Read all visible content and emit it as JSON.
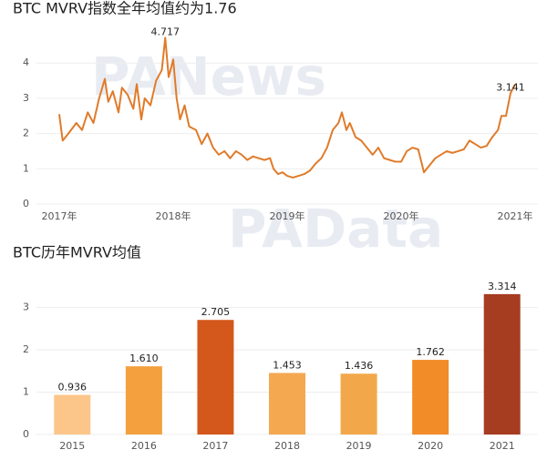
{
  "watermarks": [
    "PANews",
    "PAData"
  ],
  "chart_data": [
    {
      "type": "line",
      "title": "BTC MVRV指数全年均值约为1.76",
      "xlim": [
        2016.8,
        2021.2
      ],
      "xticks": [
        {
          "value": 2017,
          "label": "2017年"
        },
        {
          "value": 2018,
          "label": "2018年"
        },
        {
          "value": 2019,
          "label": "2019年"
        },
        {
          "value": 2020,
          "label": "2020年"
        },
        {
          "value": 2021,
          "label": "2021年"
        }
      ],
      "ylim": [
        0,
        5
      ],
      "yticks": [
        0,
        1,
        2,
        3,
        4
      ],
      "grid": true,
      "series": [
        {
          "name": "MVRV",
          "color": "#e07b2a",
          "x": [
            2017.0,
            2017.03,
            2017.08,
            2017.15,
            2017.2,
            2017.25,
            2017.3,
            2017.35,
            2017.4,
            2017.43,
            2017.47,
            2017.52,
            2017.55,
            2017.6,
            2017.65,
            2017.68,
            2017.72,
            2017.75,
            2017.8,
            2017.85,
            2017.9,
            2017.93,
            2017.96,
            2018.0,
            2018.03,
            2018.06,
            2018.1,
            2018.14,
            2018.2,
            2018.25,
            2018.3,
            2018.35,
            2018.4,
            2018.45,
            2018.5,
            2018.55,
            2018.6,
            2018.65,
            2018.7,
            2018.75,
            2018.8,
            2018.85,
            2018.88,
            2018.92,
            2018.96,
            2019.0,
            2019.05,
            2019.1,
            2019.15,
            2019.2,
            2019.25,
            2019.3,
            2019.35,
            2019.4,
            2019.45,
            2019.48,
            2019.52,
            2019.55,
            2019.6,
            2019.65,
            2019.7,
            2019.75,
            2019.8,
            2019.85,
            2019.9,
            2019.95,
            2020.0,
            2020.05,
            2020.1,
            2020.15,
            2020.2,
            2020.25,
            2020.3,
            2020.35,
            2020.4,
            2020.45,
            2020.5,
            2020.55,
            2020.6,
            2020.65,
            2020.7,
            2020.75,
            2020.8,
            2020.85,
            2020.88,
            2020.92,
            2020.96,
            2021.0
          ],
          "values": [
            2.55,
            1.8,
            2.0,
            2.3,
            2.1,
            2.6,
            2.3,
            3.0,
            3.55,
            2.9,
            3.2,
            2.6,
            3.3,
            3.1,
            2.7,
            3.4,
            2.4,
            3.0,
            2.8,
            3.5,
            3.8,
            4.717,
            3.6,
            4.1,
            3.0,
            2.4,
            2.8,
            2.2,
            2.1,
            1.7,
            2.0,
            1.6,
            1.4,
            1.5,
            1.3,
            1.5,
            1.4,
            1.25,
            1.35,
            1.3,
            1.25,
            1.3,
            1.0,
            0.85,
            0.9,
            0.8,
            0.75,
            0.8,
            0.85,
            0.95,
            1.15,
            1.3,
            1.6,
            2.1,
            2.3,
            2.6,
            2.1,
            2.3,
            1.9,
            1.8,
            1.6,
            1.4,
            1.6,
            1.3,
            1.25,
            1.2,
            1.2,
            1.5,
            1.6,
            1.55,
            0.9,
            1.1,
            1.3,
            1.4,
            1.5,
            1.45,
            1.5,
            1.55,
            1.8,
            1.7,
            1.6,
            1.65,
            1.9,
            2.1,
            2.5,
            2.5,
            3.141,
            3.4
          ]
        }
      ],
      "annotations": [
        {
          "x": 2017.93,
          "y": 4.717,
          "label": "4.717"
        },
        {
          "x": 2020.96,
          "y": 3.141,
          "label": "3.141"
        }
      ]
    },
    {
      "type": "bar",
      "title": "BTC历年MVRV均值",
      "categories": [
        "2015",
        "2016",
        "2017",
        "2018",
        "2019",
        "2020",
        "2021"
      ],
      "values": [
        0.936,
        1.61,
        2.705,
        1.453,
        1.436,
        1.762,
        3.314
      ],
      "value_labels": [
        "0.936",
        "1.610",
        "2.705",
        "1.453",
        "1.436",
        "1.762",
        "3.314"
      ],
      "colors": [
        "#fcc68a",
        "#f4a03e",
        "#d4581c",
        "#f4a850",
        "#f2a84a",
        "#f28c28",
        "#a63c20"
      ],
      "ylim": [
        0,
        3.5
      ],
      "yticks": [
        0,
        1,
        2,
        3
      ],
      "grid": true
    }
  ]
}
